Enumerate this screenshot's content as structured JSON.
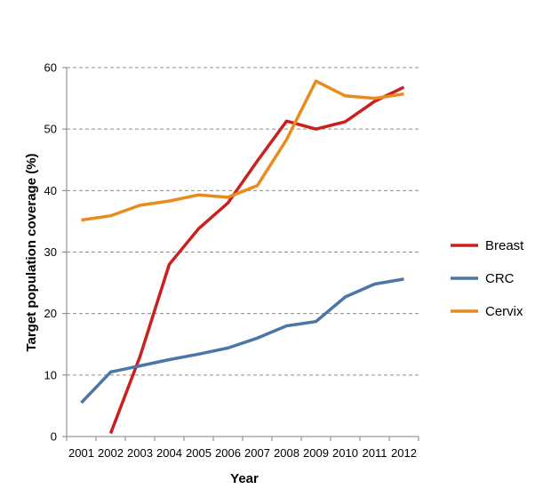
{
  "chart_data": {
    "type": "line",
    "xlabel": "Year",
    "ylabel": "Target population coverage (%)",
    "ylim": [
      0,
      60
    ],
    "yticks": [
      0,
      10,
      20,
      30,
      40,
      50,
      60
    ],
    "x": [
      "2001",
      "2002",
      "2003",
      "2004",
      "2005",
      "2006",
      "2007",
      "2008",
      "2009",
      "2010",
      "2011",
      "2012"
    ],
    "grid": "horizontal-dashed",
    "legend": "right",
    "series": [
      {
        "name": "Breast",
        "color": "#c9211e",
        "values": [
          null,
          0.5,
          13,
          28,
          33.8,
          38,
          44.8,
          51.3,
          50,
          51.2,
          54.5,
          56.8
        ]
      },
      {
        "name": "CRC",
        "color": "#4a77a7",
        "values": [
          5.5,
          10.5,
          11.5,
          12.5,
          13.4,
          14.4,
          16,
          18,
          18.7,
          22.7,
          24.8,
          25.6
        ]
      },
      {
        "name": "Cervix",
        "color": "#e98b1d",
        "values": [
          35.2,
          35.9,
          37.6,
          38.3,
          39.3,
          38.9,
          40.8,
          48.3,
          57.8,
          55.4,
          55,
          55.7
        ]
      }
    ]
  }
}
